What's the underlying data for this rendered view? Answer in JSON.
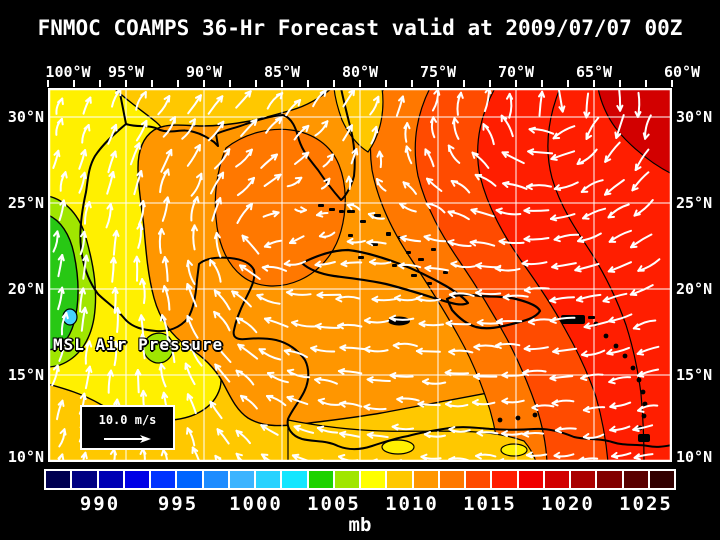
{
  "title": "FNMOC COAMPS 36-Hr Forecast valid at 2009/07/07 00Z",
  "axes": {
    "lon_labels": [
      "100°W",
      "95°W",
      "90°W",
      "85°W",
      "80°W",
      "75°W",
      "70°W",
      "65°W",
      "60°W"
    ],
    "lat_labels": [
      "30°N",
      "25°N",
      "20°N",
      "15°N",
      "10°N"
    ]
  },
  "map": {
    "field_label": "MSL Air Pressure",
    "wind_scale_label": "10.0 m/s",
    "arrow_color": "#ffffff",
    "grid_color": "#ffffff",
    "coast_color": "#000000",
    "contour_color": "#000000",
    "colors": {
      "gold": "#FFC800",
      "yellow": "#FFF000",
      "yellow_green": "#A0E600",
      "green": "#28C814",
      "cyan": "#46D2FF",
      "orange": "#FF9600",
      "deep_orange": "#FF7800",
      "orange_red": "#FF4B00",
      "red": "#FF1E00",
      "dark_red": "#D20000"
    }
  },
  "colorbar": {
    "tick_labels": [
      "990",
      "995",
      "1000",
      "1005",
      "1010",
      "1015",
      "1020",
      "1025"
    ],
    "unit": "mb",
    "cell_colors": [
      "#000050",
      "#000082",
      "#0000b4",
      "#0000e6",
      "#0032ff",
      "#0064ff",
      "#1e8cff",
      "#3cb4ff",
      "#28d2ff",
      "#14e6ff",
      "#1ed200",
      "#a0e600",
      "#ffff00",
      "#ffc800",
      "#ff9600",
      "#ff7800",
      "#ff4b00",
      "#ff1e00",
      "#f00000",
      "#d20000",
      "#aa0000",
      "#820000",
      "#5a0000",
      "#320000"
    ]
  },
  "chart_data": {
    "type": "heatmap",
    "title": "FNMOC COAMPS 36-Hr Forecast valid at 2009/07/07 00Z",
    "variable": "MSL Air Pressure",
    "unit": "mb",
    "colorbar_levels": [
      990,
      995,
      1000,
      1005,
      1010,
      1015,
      1020,
      1025
    ],
    "wind_reference_vector_mps": 10.0,
    "extent": {
      "lon_min_deg_w": 100,
      "lon_max_deg_w": 60,
      "lat_min_deg_n": 10,
      "lat_max_deg_n": 30
    },
    "grid_interval_deg": 5,
    "features": [
      {
        "name": "low-pressure center",
        "approx_lon": "97W",
        "approx_lat": "18N",
        "approx_value_mb": 1002
      },
      {
        "name": "high-pressure ridge",
        "location": "northeast Atlantic corner",
        "approx_value_mb": 1022
      },
      {
        "name": "gulf ridge cell",
        "location": "eastern Gulf of Mexico",
        "approx_value_mb": 1013
      }
    ]
  }
}
